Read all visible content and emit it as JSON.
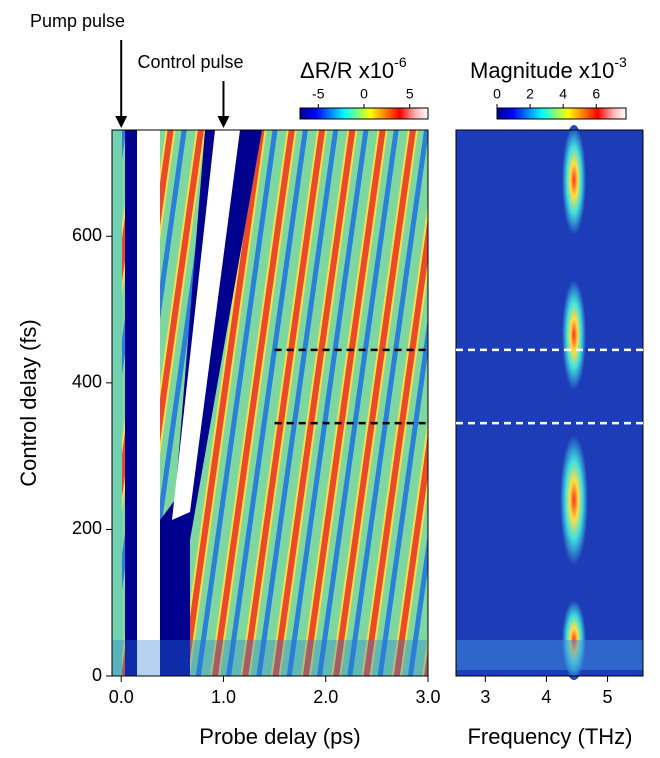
{
  "chart_data": [
    {
      "type": "heatmap",
      "xlabel": "Probe delay (ps)",
      "ylabel": "Control delay (fs)",
      "xlim": [
        -0.09,
        3.0
      ],
      "xticks": [
        {
          "value": 0,
          "label": "0.0"
        },
        {
          "value": 1,
          "label": "1.0"
        },
        {
          "value": 2,
          "label": "2.0"
        },
        {
          "value": 3,
          "label": "3.0"
        }
      ],
      "ylim": [
        0,
        745
      ],
      "yticks": [
        0,
        200,
        400,
        600
      ],
      "colorbar": {
        "label": "ΔR/R x10",
        "exponent": "-6",
        "lim": [
          -7,
          7
        ],
        "ticks": [
          -5,
          0,
          5
        ]
      },
      "annotations": [
        {
          "text": "Pump pulse",
          "x": 0
        },
        {
          "text": "Control pulse",
          "x": 1
        }
      ],
      "hlines": [
        445,
        345
      ],
      "hline_start": 1.5
    },
    {
      "type": "heatmap",
      "xlabel": "Frequency (THz)",
      "xlim": [
        2.52,
        5.58
      ],
      "xticks": [
        3,
        4,
        5
      ],
      "ylim": [
        0,
        745
      ],
      "colorbar": {
        "label": "Magnitude x10",
        "exponent": "-3",
        "lim": [
          0,
          7.8
        ],
        "ticks": [
          0,
          2,
          4,
          6
        ]
      },
      "hlines": [
        445,
        345
      ]
    }
  ]
}
